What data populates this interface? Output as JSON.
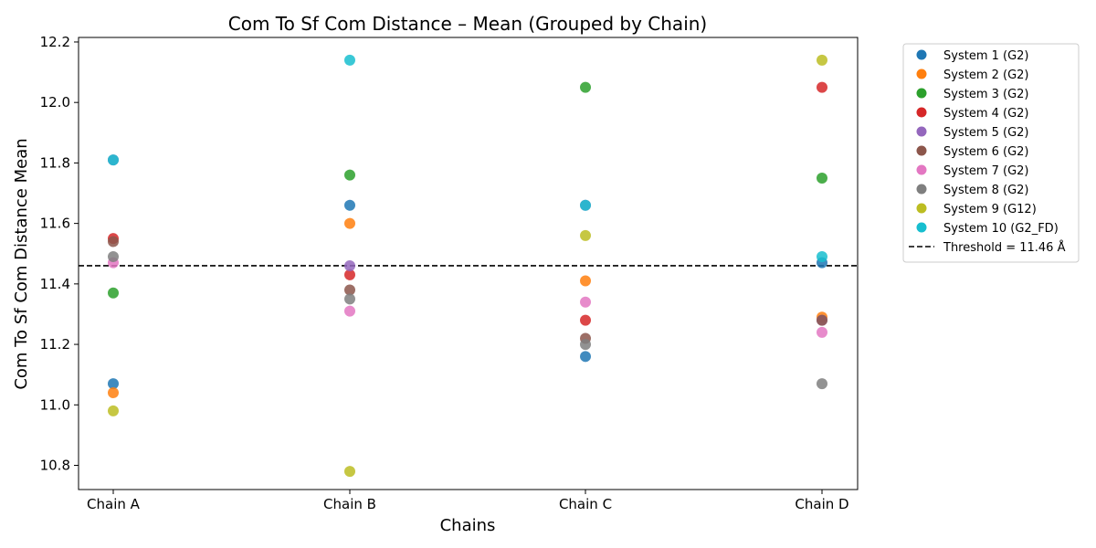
{
  "chart_data": {
    "type": "scatter",
    "title": "Com To Sf Com Distance – Mean (Grouped by Chain)",
    "xlabel": "Chains",
    "ylabel": "Com To Sf Com Distance Mean",
    "categories": [
      "Chain A",
      "Chain B",
      "Chain C",
      "Chain D"
    ],
    "ylim": [
      10.72,
      12.215
    ],
    "yticks": [
      10.8,
      11.0,
      11.2,
      11.4,
      11.6,
      11.8,
      12.0,
      12.2
    ],
    "ytick_labels": [
      "10.8",
      "11.0",
      "11.2",
      "11.4",
      "11.6",
      "11.8",
      "12.0",
      "12.2"
    ],
    "grid": false,
    "legend_position": "outside-right",
    "threshold": {
      "value": 11.46,
      "label": "Threshold = 11.46 Å",
      "color": "#000000",
      "style": "dashed"
    },
    "series": [
      {
        "name": "System 1 (G2)",
        "color": "#1f77b4",
        "values": [
          11.07,
          11.66,
          11.16,
          11.47
        ]
      },
      {
        "name": "System 2 (G2)",
        "color": "#ff7f0e",
        "values": [
          11.04,
          11.6,
          11.41,
          11.29
        ]
      },
      {
        "name": "System 3 (G2)",
        "color": "#2ca02c",
        "values": [
          11.37,
          11.76,
          12.05,
          11.75
        ]
      },
      {
        "name": "System 4 (G2)",
        "color": "#d62728",
        "values": [
          11.55,
          11.43,
          11.28,
          12.05
        ]
      },
      {
        "name": "System 5 (G2)",
        "color": "#9467bd",
        "values": [
          11.81,
          11.46,
          11.66,
          11.28
        ]
      },
      {
        "name": "System 6 (G2)",
        "color": "#8c564b",
        "values": [
          11.54,
          11.38,
          11.22,
          11.28
        ]
      },
      {
        "name": "System 7 (G2)",
        "color": "#e377c2",
        "values": [
          11.47,
          11.31,
          11.34,
          11.24
        ]
      },
      {
        "name": "System 8 (G2)",
        "color": "#7f7f7f",
        "values": [
          11.49,
          11.35,
          11.2,
          11.07
        ]
      },
      {
        "name": "System 9 (G12)",
        "color": "#bcbd22",
        "values": [
          10.98,
          10.78,
          11.56,
          12.14
        ]
      },
      {
        "name": "System 10 (G2_FD)",
        "color": "#17becf",
        "values": [
          11.81,
          12.14,
          11.66,
          11.49
        ]
      }
    ]
  }
}
